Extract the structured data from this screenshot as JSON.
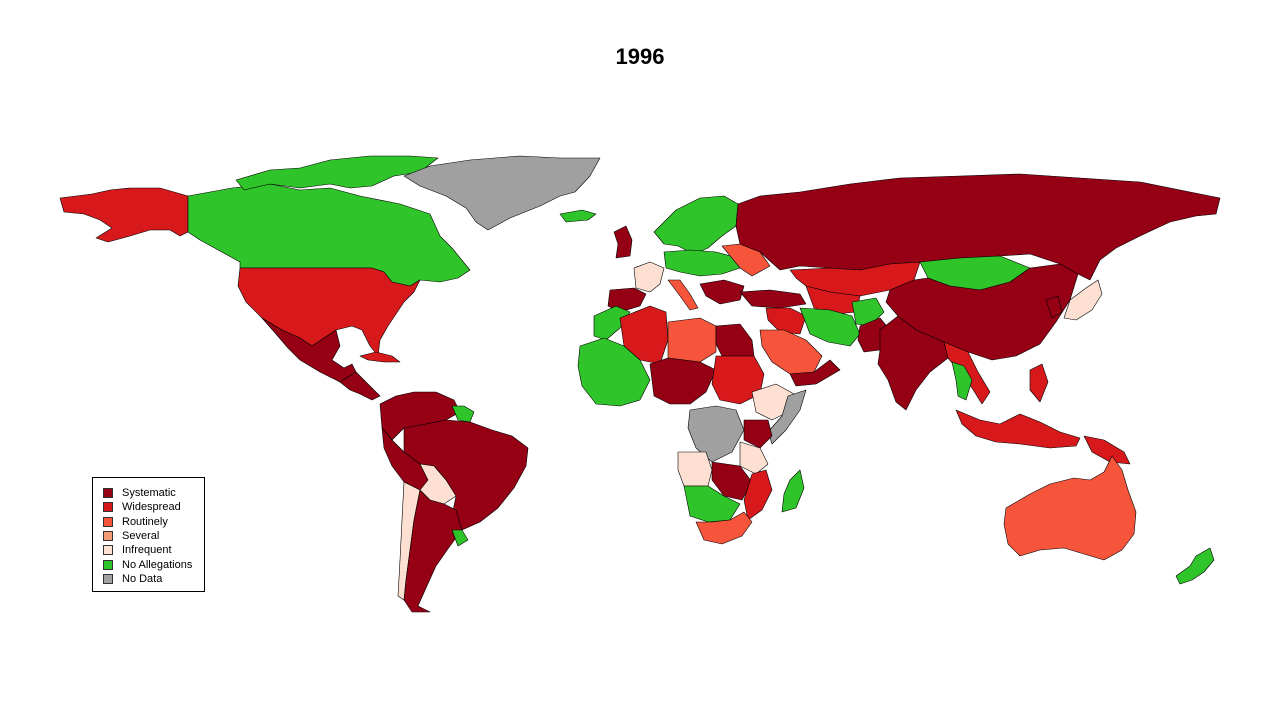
{
  "title": "1996",
  "colors": {
    "systematic": "#960015",
    "widespread": "#d7191c",
    "routinely": "#f6553c",
    "several": "#f39a76",
    "infrequent": "#fde0d2",
    "no_allegations": "#2fc42a",
    "no_data": "#a0a0a0"
  },
  "legend": {
    "items": [
      {
        "label": "Systematic",
        "key": "systematic"
      },
      {
        "label": "Widespread",
        "key": "widespread"
      },
      {
        "label": "Routinely",
        "key": "routinely"
      },
      {
        "label": "Several",
        "key": "several"
      },
      {
        "label": "Infrequent",
        "key": "infrequent"
      },
      {
        "label": "No Allegations",
        "key": "no_allegations"
      },
      {
        "label": "No Data",
        "key": "no_data"
      }
    ]
  },
  "regions": [
    {
      "name": "greenland",
      "category": "no_data"
    },
    {
      "name": "canada",
      "category": "no_allegations"
    },
    {
      "name": "canada-arctic-islands",
      "category": "no_allegations"
    },
    {
      "name": "alaska",
      "category": "widespread"
    },
    {
      "name": "usa",
      "category": "widespread"
    },
    {
      "name": "mexico",
      "category": "systematic"
    },
    {
      "name": "central-america",
      "category": "systematic"
    },
    {
      "name": "cuba",
      "category": "widespread"
    },
    {
      "name": "colombia-venezuela",
      "category": "systematic"
    },
    {
      "name": "guianas",
      "category": "no_allegations"
    },
    {
      "name": "brazil",
      "category": "systematic"
    },
    {
      "name": "peru",
      "category": "systematic"
    },
    {
      "name": "bolivia",
      "category": "infrequent"
    },
    {
      "name": "chile",
      "category": "infrequent"
    },
    {
      "name": "argentina",
      "category": "systematic"
    },
    {
      "name": "uruguay",
      "category": "no_allegations"
    },
    {
      "name": "iceland",
      "category": "no_allegations"
    },
    {
      "name": "uk",
      "category": "systematic"
    },
    {
      "name": "france",
      "category": "infrequent"
    },
    {
      "name": "iberia",
      "category": "systematic"
    },
    {
      "name": "scandinavia",
      "category": "no_allegations"
    },
    {
      "name": "central-europe",
      "category": "no_allegations"
    },
    {
      "name": "italy",
      "category": "routinely"
    },
    {
      "name": "eastern-europe",
      "category": "routinely"
    },
    {
      "name": "balkans",
      "category": "systematic"
    },
    {
      "name": "russia",
      "category": "systematic"
    },
    {
      "name": "kazakhstan",
      "category": "widespread"
    },
    {
      "name": "mongolia",
      "category": "no_allegations"
    },
    {
      "name": "china",
      "category": "systematic"
    },
    {
      "name": "japan",
      "category": "infrequent"
    },
    {
      "name": "korea",
      "category": "systematic"
    },
    {
      "name": "turkey",
      "category": "systematic"
    },
    {
      "name": "central-asia",
      "category": "widespread"
    },
    {
      "name": "iran",
      "category": "no_allegations"
    },
    {
      "name": "afghanistan",
      "category": "no_allegations"
    },
    {
      "name": "iraq-syria",
      "category": "widespread"
    },
    {
      "name": "saudi-arabia",
      "category": "routinely"
    },
    {
      "name": "yemen-oman",
      "category": "systematic"
    },
    {
      "name": "pakistan",
      "category": "systematic"
    },
    {
      "name": "india",
      "category": "systematic"
    },
    {
      "name": "southeast-asia",
      "category": "widespread"
    },
    {
      "name": "thailand",
      "category": "no_allegations"
    },
    {
      "name": "indonesia",
      "category": "widespread"
    },
    {
      "name": "philippines",
      "category": "widespread"
    },
    {
      "name": "png",
      "category": "widespread"
    },
    {
      "name": "australia",
      "category": "routinely"
    },
    {
      "name": "new-zealand",
      "category": "no_allegations"
    },
    {
      "name": "morocco",
      "category": "no_allegations"
    },
    {
      "name": "algeria",
      "category": "widespread"
    },
    {
      "name": "libya",
      "category": "routinely"
    },
    {
      "name": "egypt",
      "category": "systematic"
    },
    {
      "name": "west-africa",
      "category": "no_allegations"
    },
    {
      "name": "sahel-central",
      "category": "systematic"
    },
    {
      "name": "sudan",
      "category": "widespread"
    },
    {
      "name": "ethiopia",
      "category": "infrequent"
    },
    {
      "name": "somalia",
      "category": "no_data"
    },
    {
      "name": "kenya",
      "category": "systematic"
    },
    {
      "name": "congo",
      "category": "no_data"
    },
    {
      "name": "tanzania",
      "category": "infrequent"
    },
    {
      "name": "angola",
      "category": "infrequent"
    },
    {
      "name": "zambia",
      "category": "systematic"
    },
    {
      "name": "namibia-botswana",
      "category": "no_allegations"
    },
    {
      "name": "south-africa",
      "category": "routinely"
    },
    {
      "name": "mozambique",
      "category": "widespread"
    },
    {
      "name": "madagascar",
      "category": "no_allegations"
    }
  ]
}
